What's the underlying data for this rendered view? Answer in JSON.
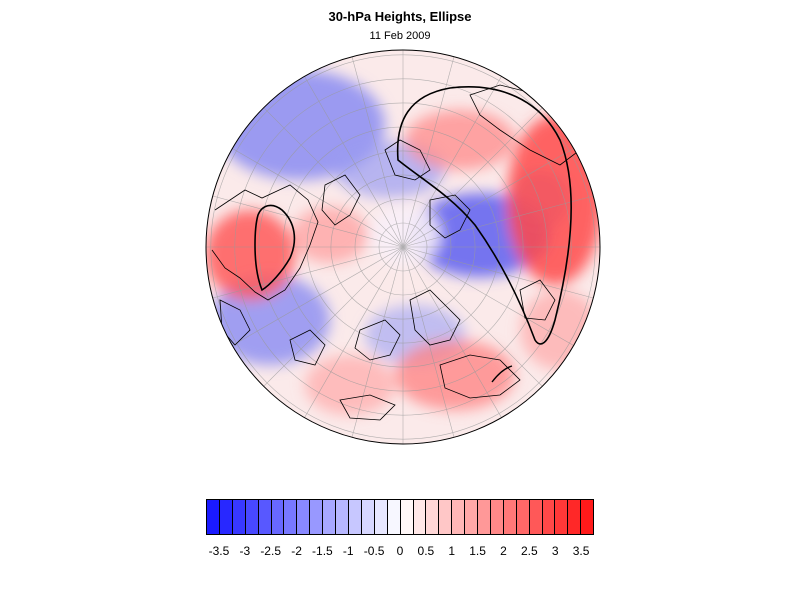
{
  "header": {
    "title": "30-hPa Heights, Ellipse",
    "subtitle": "11 Feb 2009"
  },
  "map": {
    "projection": "north-polar-stereographic",
    "field": "standardized 30-hPa height anomaly",
    "overlay": "vortex ellipse contour (black)",
    "colors": {
      "negative_strong": "#1a1aff",
      "neutral": "#ffffff",
      "positive_strong": "#ff1a1a",
      "coastline": "#000000",
      "graticule": "#9a9a9a"
    }
  },
  "colorbar": {
    "levels": [
      -3.75,
      -3.5,
      -3.25,
      -3,
      -2.75,
      -2.5,
      -2.25,
      -2,
      -1.75,
      -1.5,
      -1.25,
      -1,
      -0.75,
      -0.5,
      -0.25,
      0,
      0.25,
      0.5,
      0.75,
      1,
      1.25,
      1.5,
      1.75,
      2,
      2.25,
      2.5,
      2.75,
      3,
      3.25,
      3.5,
      3.75
    ],
    "tick_labels": [
      "-3.5",
      "-3",
      "-2.5",
      "-2",
      "-1.5",
      "-1",
      "-0.5",
      "0",
      "0.5",
      "1",
      "1.5",
      "2",
      "2.5",
      "3",
      "3.5"
    ],
    "min_color": "#1a1aff",
    "max_color": "#ff1a1a"
  }
}
